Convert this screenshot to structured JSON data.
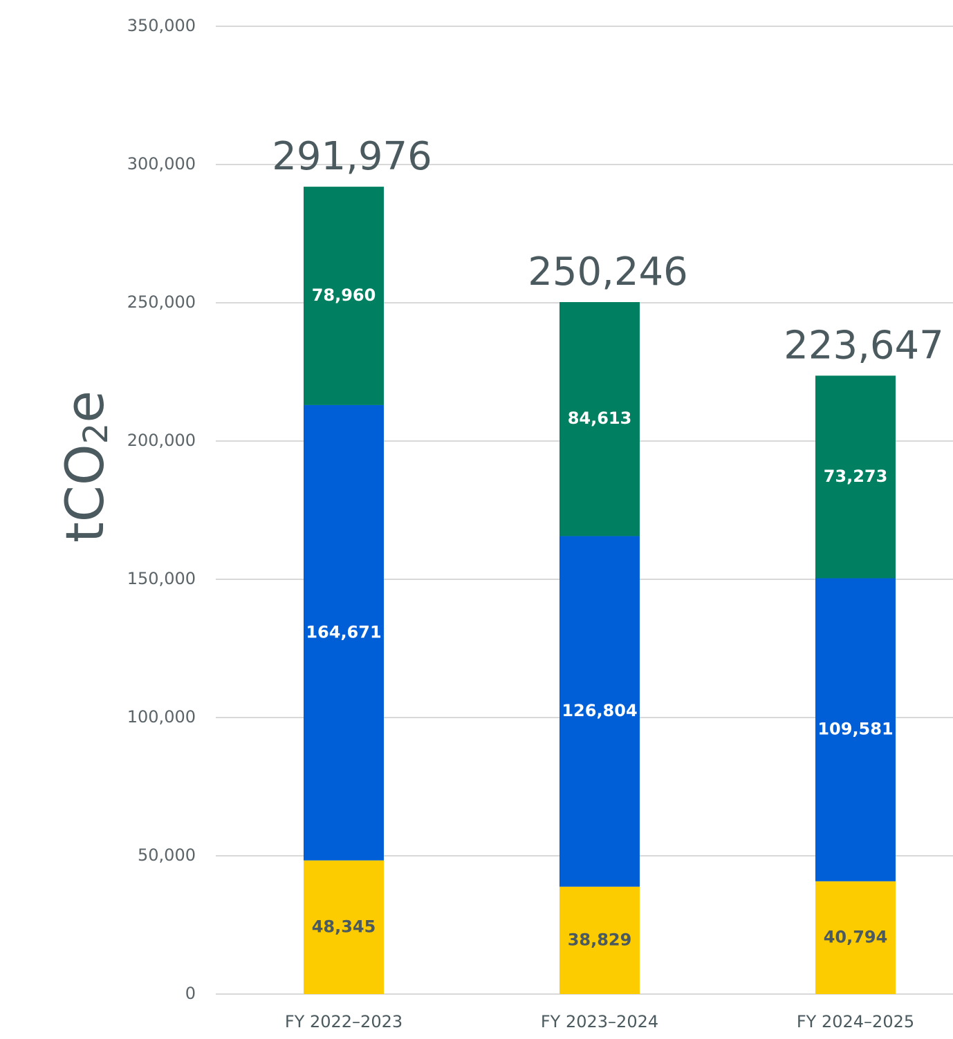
{
  "chart_data": {
    "type": "stacked_bar",
    "ylabel": [
      "tCO",
      "2",
      "e"
    ],
    "categories": [
      "FY 2022–2023",
      "FY 2023–2024",
      "FY 2024–2025"
    ],
    "series": [
      {
        "color": "#fccc00",
        "label_color": "#4b5a5f",
        "values": [
          48345,
          38829,
          40794
        ],
        "value_labels": [
          "48,345",
          "38,829",
          "40,794"
        ]
      },
      {
        "color": "#005fd7",
        "label_color": "#ffffff",
        "values": [
          164671,
          126804,
          109581
        ],
        "value_labels": [
          "164,671",
          "126,804",
          "109,581"
        ]
      },
      {
        "color": "#008060",
        "label_color": "#ffffff",
        "values": [
          78960,
          84613,
          73273
        ],
        "value_labels": [
          "78,960",
          "84,613",
          "73,273"
        ]
      }
    ],
    "totals": [
      291976,
      250246,
      223647
    ],
    "total_labels": [
      "291,976",
      "250,246",
      "223,647"
    ],
    "ylim": [
      0,
      350000
    ],
    "yticks": [
      0,
      {
        "value": 50000,
        "label": "50,000"
      },
      {
        "value": 100000,
        "label": "100,000"
      },
      {
        "value": 150000,
        "label": "150,000"
      },
      {
        "value": 200000,
        "label": "200,000"
      },
      {
        "value": 250000,
        "label": "250,000"
      },
      {
        "value": 300000,
        "label": "300,000"
      },
      {
        "value": 350000,
        "label": "350,000"
      }
    ],
    "grid": true
  }
}
